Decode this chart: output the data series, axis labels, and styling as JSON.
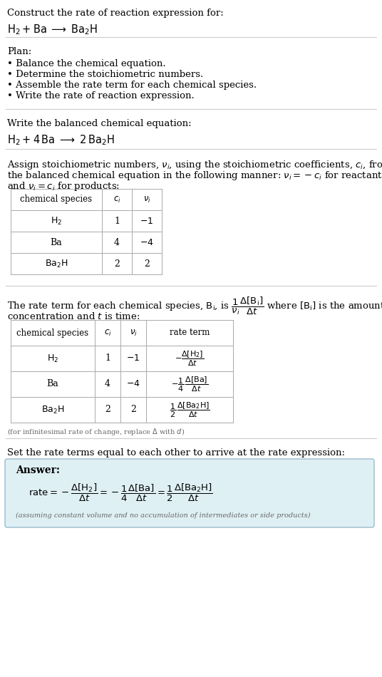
{
  "bg_color": "#ffffff",
  "text_color": "#000000",
  "gray_text": "#666666",
  "table_border": "#aaaaaa",
  "answer_box_bg": "#dff0f5",
  "answer_box_border": "#99bbcc",
  "title_line1": "Construct the rate of reaction expression for:",
  "title_line2_latex": "$\\mathrm{H_2 + Ba \\;\\longrightarrow\\; Ba_2H}$",
  "plan_header": "Plan:",
  "plan_items": [
    "• Balance the chemical equation.",
    "• Determine the stoichiometric numbers.",
    "• Assemble the rate term for each chemical species.",
    "• Write the rate of reaction expression."
  ],
  "balanced_header": "Write the balanced chemical equation:",
  "balanced_eq": "$\\mathrm{H_2 + 4\\,Ba \\;\\longrightarrow\\; 2\\,Ba_2H}$",
  "stoich_intro_l1": "Assign stoichiometric numbers, $\\nu_i$, using the stoichiometric coefficients, $c_i$, from",
  "stoich_intro_l2": "the balanced chemical equation in the following manner: $\\nu_i = -c_i$ for reactants",
  "stoich_intro_l3": "and $\\nu_i = c_i$ for products:",
  "table1_headers": [
    "chemical species",
    "$c_i$",
    "$\\nu_i$"
  ],
  "table1_rows": [
    [
      "$\\mathrm{H_2}$",
      "1",
      "$-1$"
    ],
    [
      "Ba",
      "4",
      "$-4$"
    ],
    [
      "$\\mathrm{Ba_2H}$",
      "2",
      "2"
    ]
  ],
  "rate_intro_l1": "The rate term for each chemical species, $\\mathrm{B_i}$, is $\\dfrac{1}{\\nu_i}\\dfrac{\\Delta[\\mathrm{B_i}]}{\\Delta t}$ where $[\\mathrm{B_i}]$ is the amount",
  "rate_intro_l2": "concentration and $t$ is time:",
  "table2_headers": [
    "chemical species",
    "$c_i$",
    "$\\nu_i$",
    "rate term"
  ],
  "table2_rows": [
    [
      "$\\mathrm{H_2}$",
      "1",
      "$-1$",
      "$-\\dfrac{\\Delta[\\mathrm{H_2}]}{\\Delta t}$"
    ],
    [
      "Ba",
      "4",
      "$-4$",
      "$-\\dfrac{1}{4}\\,\\dfrac{\\Delta[\\mathrm{Ba}]}{\\Delta t}$"
    ],
    [
      "$\\mathrm{Ba_2H}$",
      "2",
      "2",
      "$\\dfrac{1}{2}\\,\\dfrac{\\Delta[\\mathrm{Ba_2H}]}{\\Delta t}$"
    ]
  ],
  "infinitesimal_note": "(for infinitesimal rate of change, replace $\\Delta$ with $d$)",
  "set_equal_text": "Set the rate terms equal to each other to arrive at the rate expression:",
  "answer_label": "Answer:",
  "answer_eq": "$\\mathrm{rate} = -\\dfrac{\\Delta[\\mathrm{H_2}]}{\\Delta t} = -\\dfrac{1}{4}\\dfrac{\\Delta[\\mathrm{Ba}]}{\\Delta t} = \\dfrac{1}{2}\\dfrac{\\Delta[\\mathrm{Ba_2H}]}{\\Delta t}$",
  "answer_note": "(assuming constant volume and no accumulation of intermediates or side products)"
}
